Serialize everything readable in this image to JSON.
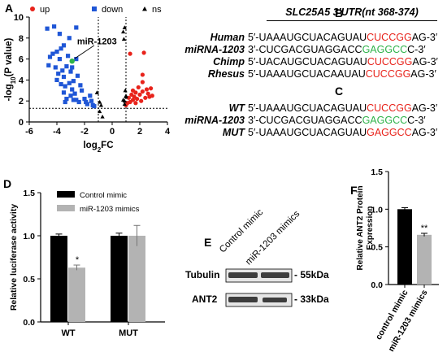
{
  "colors": {
    "up": "#e8231b",
    "down": "#1f56d6",
    "ns": "#000000",
    "highlight": "#2fb34a",
    "bar_control": "#000000",
    "bar_mimic": "#b3b3b3",
    "seed_red": "#e8231b",
    "seed_green": "#2fb34a"
  },
  "panels": {
    "A": {
      "letter": "A",
      "legend": [
        {
          "label": "up",
          "shape": "circle",
          "color": "#e8231b"
        },
        {
          "label": "down",
          "shape": "square",
          "color": "#1f56d6"
        },
        {
          "label": "ns",
          "shape": "triangle",
          "color": "#000000"
        }
      ],
      "annotation": "miR-1203",
      "xlabel_main": "log",
      "xlabel_sub": "2",
      "xlabel_tail": "FC",
      "ylabel_main": "-log",
      "ylabel_sub": "10",
      "ylabel_tail": "(P value)"
    },
    "B": {
      "letter": "B",
      "title": "SLC25A5 3′UTR(nt 368-374)",
      "rows": [
        {
          "label": "Human",
          "prefix": "5′-UAAAUGCUACAGUAU",
          "seed": "CUCCGG",
          "seed_color": "red",
          "suffix": "AG-3′"
        },
        {
          "label": "miRNA-1203",
          "prefix": "3′-CUCGACGUAGGACC",
          "seed": "GAGGCC",
          "seed_color": "green",
          "suffix": "C-3′"
        },
        {
          "label": "Chimp",
          "prefix": "5′-UACAUGCUACAGUAU",
          "seed": "CUCCGG",
          "seed_color": "red",
          "suffix": "AG-3′"
        },
        {
          "label": "Rhesus",
          "prefix": "5′-UAAAUGCUACAAUAU",
          "seed": "CUCCGG",
          "seed_color": "red",
          "suffix": "AG-3′"
        }
      ]
    },
    "C": {
      "letter": "C",
      "rows": [
        {
          "label": "WT",
          "prefix": "5′-UAAAUGCUACAGUAU",
          "seed": "CUCCGG",
          "seed_color": "red",
          "suffix": "AG-3′"
        },
        {
          "label": "miRNA-1203",
          "prefix": "3′-CUCGACGUAGGACC",
          "seed": "GAGGCC",
          "seed_color": "green",
          "suffix": "C-3′"
        },
        {
          "label": "MUT",
          "prefix": "5′-UAAAUGCUACAGUAU",
          "seed": "GAGGCC",
          "seed_color": "red",
          "suffix": "AG-3′"
        }
      ]
    },
    "D": {
      "letter": "D",
      "significance": "*"
    },
    "E": {
      "letter": "E",
      "lanes": [
        "Control mimic",
        "miR-1203 mimics"
      ],
      "rows": [
        {
          "protein": "Tubulin",
          "size": "- 55kDa"
        },
        {
          "protein": "ANT2",
          "size": "- 33kDa"
        }
      ]
    },
    "F": {
      "letter": "F",
      "significance": "**"
    }
  },
  "chart_data": [
    {
      "type": "scatter",
      "panel": "A",
      "title": "",
      "xlabel": "log2FC",
      "ylabel": "-log10(P value)",
      "xlim": [
        -6,
        4
      ],
      "ylim": [
        0,
        10
      ],
      "xticks": [
        -6,
        -4,
        -2,
        0,
        2,
        4
      ],
      "yticks": [
        0,
        2,
        4,
        6,
        8,
        10
      ],
      "threshold_lines": {
        "x": [
          -1,
          1
        ],
        "y": 1.3
      },
      "series": [
        {
          "name": "up",
          "points": [
            [
              1.1,
              1.8
            ],
            [
              1.2,
              2.3
            ],
            [
              1.3,
              6.5
            ],
            [
              1.3,
              1.9
            ],
            [
              1.4,
              2.6
            ],
            [
              1.5,
              2.1
            ],
            [
              1.5,
              3.0
            ],
            [
              1.6,
              2.4
            ],
            [
              1.7,
              1.8
            ],
            [
              1.7,
              2.8
            ],
            [
              1.8,
              2.2
            ],
            [
              1.9,
              3.3
            ],
            [
              2.0,
              2.6
            ],
            [
              2.1,
              2.0
            ],
            [
              2.2,
              3.8
            ],
            [
              2.2,
              2.9
            ],
            [
              2.3,
              6.6
            ],
            [
              2.4,
              2.3
            ],
            [
              2.5,
              3.1
            ],
            [
              2.6,
              2.7
            ],
            [
              2.7,
              2.4
            ],
            [
              2.8,
              3.2
            ],
            [
              2.9,
              2.5
            ],
            [
              1.0,
              1.6
            ],
            [
              2.2,
              4.5
            ]
          ]
        },
        {
          "name": "down",
          "points": [
            [
              -4.7,
              8.9
            ],
            [
              -4.2,
              9.1
            ],
            [
              -3.8,
              8.4
            ],
            [
              -2.6,
              9.0
            ],
            [
              -3.1,
              8.0
            ],
            [
              -3.5,
              7.3
            ],
            [
              -4.3,
              6.5
            ],
            [
              -4.5,
              6.2
            ],
            [
              -4.0,
              6.7
            ],
            [
              -3.8,
              6.0
            ],
            [
              -4.6,
              5.4
            ],
            [
              -4.1,
              5.2
            ],
            [
              -3.9,
              4.6
            ],
            [
              -3.6,
              4.9
            ],
            [
              -3.5,
              4.3
            ],
            [
              -3.3,
              5.3
            ],
            [
              -3.0,
              4.8
            ],
            [
              -2.9,
              5.2
            ],
            [
              -4.0,
              4.0
            ],
            [
              -3.7,
              3.6
            ],
            [
              -3.4,
              3.4
            ],
            [
              -3.1,
              3.7
            ],
            [
              -2.9,
              3.1
            ],
            [
              -3.5,
              2.8
            ],
            [
              -3.3,
              2.2
            ],
            [
              -3.0,
              2.5
            ],
            [
              -2.7,
              2.7
            ],
            [
              -2.6,
              2.1
            ],
            [
              -3.4,
              1.9
            ],
            [
              -2.4,
              1.9
            ],
            [
              -2.8,
              2.1
            ],
            [
              -2.3,
              3.5
            ],
            [
              -2.2,
              3.0
            ],
            [
              -2.0,
              2.2
            ],
            [
              -1.9,
              1.9
            ],
            [
              -1.8,
              1.7
            ],
            [
              -1.6,
              2.5
            ],
            [
              -1.5,
              2.0
            ],
            [
              -1.4,
              1.6
            ],
            [
              -1.3,
              1.5
            ],
            [
              -2.5,
              4.4
            ],
            [
              -2.8,
              3.9
            ],
            [
              -3.2,
              6.3
            ],
            [
              -3.7,
              7.0
            ],
            [
              -2.6,
              6.0
            ]
          ]
        },
        {
          "name": "ns",
          "points": [
            [
              -0.9,
              1.9
            ],
            [
              -0.8,
              1.6
            ],
            [
              -0.7,
              0.5
            ],
            [
              0.9,
              2.0
            ],
            [
              1.0,
              2.4
            ],
            [
              0.8,
              2.1
            ],
            [
              1.0,
              2.5
            ],
            [
              0.9,
              1.7
            ],
            [
              0.8,
              8.6
            ],
            [
              0.9,
              9.0
            ],
            [
              0.85,
              7.9
            ],
            [
              -0.9,
              1.0
            ],
            [
              0.95,
              3.0
            ],
            [
              -1.1,
              2.8
            ]
          ]
        },
        {
          "name": "miR-1203",
          "points": [
            [
              -2.9,
              5.8
            ]
          ]
        }
      ]
    },
    {
      "type": "bar",
      "panel": "D",
      "title": "",
      "xlabel": "",
      "ylabel": "Relative luciferase activity",
      "categories": [
        "WT",
        "MUT"
      ],
      "ylim": [
        0,
        1.5
      ],
      "yticks": [
        0.0,
        0.5,
        1.0,
        1.5
      ],
      "legend_position": "top-left",
      "series": [
        {
          "name": "Control mimic",
          "values": [
            1.0,
            1.0
          ],
          "errors": [
            0.02,
            0.03
          ]
        },
        {
          "name": "miR-1203 mimics",
          "values": [
            0.63,
            1.0
          ],
          "errors": [
            0.03,
            0.12
          ]
        }
      ]
    },
    {
      "type": "bar",
      "panel": "F",
      "title": "",
      "xlabel": "",
      "ylabel": "Relative ANT2 Protein Expression",
      "categories": [
        "control mimic",
        "miR-1203 mimics"
      ],
      "values": [
        1.0,
        0.66
      ],
      "errors": [
        0.02,
        0.02
      ],
      "ylim": [
        0,
        1.5
      ],
      "yticks": [
        0.0,
        0.5,
        1.0,
        1.5
      ]
    }
  ]
}
